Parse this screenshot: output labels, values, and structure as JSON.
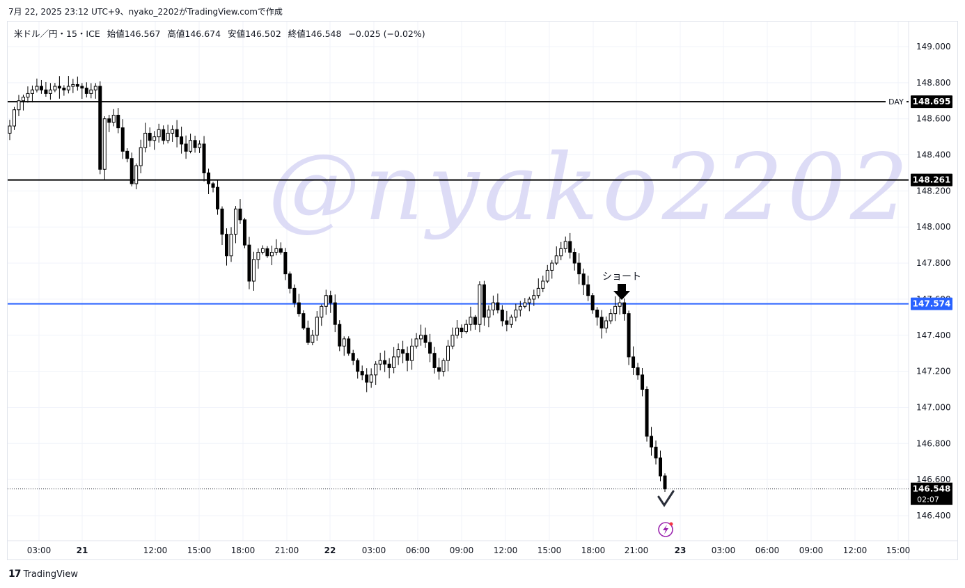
{
  "caption": "7月 22, 2025 23:12 UTC+9、nyako_2202がTradingView.comで作成",
  "legend": {
    "symbol": "米ドル／円・15・ICE",
    "open": "始値146.567",
    "high": "高値146.674",
    "low": "安値146.502",
    "close": "終値146.548",
    "change": "−0.025 (−0.02%)"
  },
  "footer": {
    "brand": "TradingView",
    "logo_icon": "tradingview-logo-icon"
  },
  "watermark": "@nyako2202",
  "annotation": {
    "text": "ショート",
    "icon": "down-arrow-icon"
  },
  "colors": {
    "candle": "#000000",
    "level_line": "#000000",
    "blue_line": "#2962ff",
    "watermark": "#d8d6f5",
    "label_dark": "#000000",
    "label_blue": "#2962ff",
    "lightning": "#9c27b0"
  },
  "chart_data": {
    "type": "candlestick",
    "symbol": "USDJPY 15m",
    "ylim": [
      146.3,
      149.15
    ],
    "y_ticks": [
      "149.000",
      "148.800",
      "148.600",
      "148.400",
      "148.200",
      "148.000",
      "147.800",
      "147.600",
      "147.400",
      "147.200",
      "147.000",
      "146.800",
      "146.600",
      "146.400"
    ],
    "x_ticks": [
      "03:00",
      "21",
      "12:00",
      "15:00",
      "18:00",
      "21:00",
      "22",
      "03:00",
      "06:00",
      "09:00",
      "12:00",
      "15:00",
      "18:00",
      "21:00",
      "23",
      "03:00",
      "06:00",
      "09:00",
      "12:00",
      "15:00"
    ],
    "bold_x_ticks": [
      "21",
      "22",
      "23"
    ],
    "levels": [
      {
        "price": 148.695,
        "label": "148.695",
        "tag": "DAY",
        "style": "dark"
      },
      {
        "price": 148.261,
        "label": "148.261",
        "style": "dark"
      },
      {
        "price": 147.574,
        "label": "147.574",
        "style": "blue"
      }
    ],
    "last_price": {
      "price": 146.548,
      "label": "146.548",
      "countdown": "02:07"
    },
    "close_path": [
      148.56,
      148.65,
      148.7,
      148.72,
      148.74,
      148.76,
      148.78,
      148.76,
      148.74,
      148.76,
      148.78,
      148.77,
      148.76,
      148.78,
      148.79,
      148.78,
      148.77,
      148.74,
      148.76,
      148.78,
      148.32,
      148.6,
      148.58,
      148.62,
      148.55,
      148.42,
      148.38,
      148.24,
      148.34,
      148.44,
      148.52,
      148.48,
      148.5,
      148.54,
      148.48,
      148.52,
      148.54,
      148.5,
      148.46,
      148.42,
      148.48,
      148.44,
      148.46,
      148.3,
      148.24,
      148.22,
      148.1,
      147.96,
      147.84,
      147.96,
      148.1,
      148.04,
      147.9,
      147.7,
      147.82,
      147.86,
      147.88,
      147.84,
      147.86,
      147.88,
      147.86,
      147.74,
      147.66,
      147.58,
      147.52,
      147.44,
      147.36,
      147.4,
      147.5,
      147.56,
      147.62,
      147.58,
      147.46,
      147.34,
      147.38,
      147.3,
      147.26,
      147.2,
      147.18,
      147.14,
      147.18,
      147.24,
      147.26,
      147.24,
      147.22,
      147.28,
      147.32,
      147.3,
      147.26,
      147.34,
      147.38,
      147.4,
      147.36,
      147.3,
      147.22,
      147.2,
      147.26,
      147.34,
      147.4,
      147.44,
      147.42,
      147.46,
      147.5,
      147.46,
      147.68,
      147.5,
      147.54,
      147.58,
      147.54,
      147.48,
      147.46,
      147.5,
      147.54,
      147.56,
      147.58,
      147.6,
      147.62,
      147.66,
      147.7,
      147.76,
      147.8,
      147.84,
      147.88,
      147.92,
      147.86,
      147.8,
      147.74,
      147.68,
      147.62,
      147.54,
      147.5,
      147.44,
      147.48,
      147.52,
      147.56,
      147.58,
      147.52,
      147.28,
      147.22,
      147.18,
      147.1,
      146.84,
      146.78,
      146.72,
      146.62,
      146.548
    ],
    "x_start_tick_index": 0
  }
}
